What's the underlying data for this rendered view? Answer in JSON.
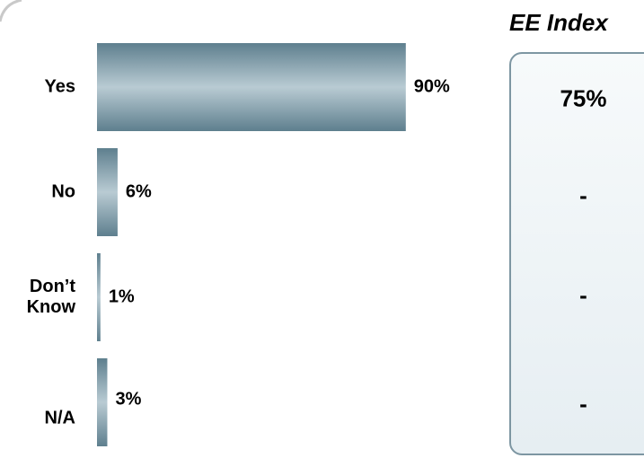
{
  "chart_data": {
    "type": "bar",
    "orientation": "horizontal",
    "categories": [
      "Yes",
      "No",
      "Don’t Know",
      "N/A"
    ],
    "values": [
      90,
      6,
      1,
      3
    ],
    "value_labels": [
      "90%",
      "6%",
      "1%",
      "3%"
    ],
    "xlim": [
      0,
      100
    ],
    "colors": {
      "bar_edge": "#5e7f8e",
      "bar_center": "#b9cbd3"
    }
  },
  "ee_index": {
    "title": "EE Index",
    "values": [
      "75%",
      "-",
      "-",
      "-"
    ]
  }
}
